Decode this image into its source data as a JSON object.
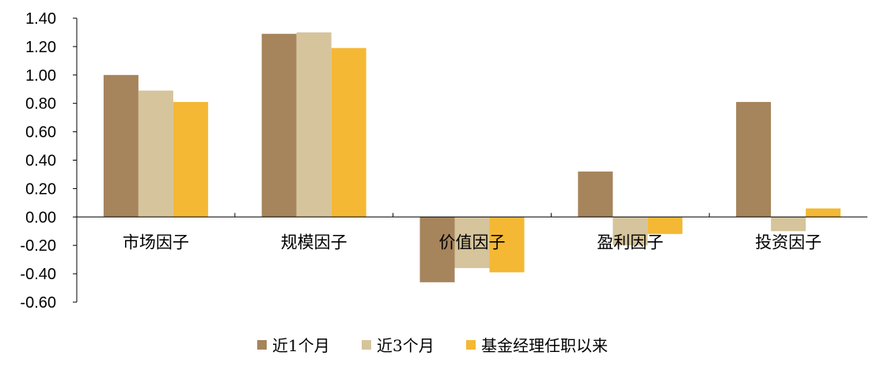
{
  "chart_data": {
    "type": "bar",
    "title": "",
    "xlabel": "",
    "ylabel": "",
    "ylim": [
      -0.6,
      1.4
    ],
    "yticks": [
      1.4,
      1.2,
      1.0,
      0.8,
      0.6,
      0.4,
      0.2,
      0.0,
      -0.2,
      -0.4,
      -0.6
    ],
    "ytick_labels": [
      "1.40",
      "1.20",
      "1.00",
      "0.80",
      "0.60",
      "0.40",
      "0.20",
      "0.00",
      "-0.20",
      "-0.40",
      "-0.60"
    ],
    "categories": [
      "市场因子",
      "规模因子",
      "价值因子",
      "盈利因子",
      "投资因子"
    ],
    "series": [
      {
        "name": "近1个月",
        "color": "#A6845C",
        "values": [
          1.0,
          1.29,
          -0.46,
          0.32,
          0.81
        ]
      },
      {
        "name": "近3个月",
        "color": "#D5C49C",
        "values": [
          0.89,
          1.3,
          -0.36,
          -0.2,
          -0.1
        ]
      },
      {
        "name": "基金经理任职以来",
        "color": "#F4B834",
        "values": [
          0.81,
          1.19,
          -0.39,
          -0.12,
          0.06
        ]
      }
    ],
    "grid": false,
    "legend_position": "bottom"
  }
}
